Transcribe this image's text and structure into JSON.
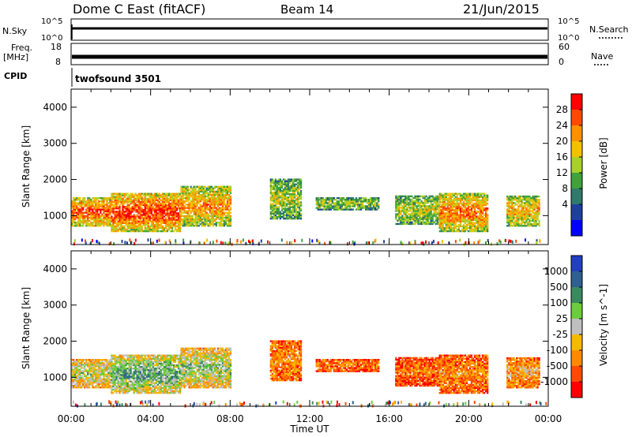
{
  "header": {
    "station": "Dome C East (fitACF)",
    "beam": "Beam 14",
    "date": "21/Jun/2015"
  },
  "status_panels": {
    "nsky_label": "N.Sky",
    "nsky_ticks": [
      "10^5",
      "10^0"
    ],
    "nsearch_label": "N.Search",
    "nsearch_ticks": [
      "10^5",
      "10^0"
    ],
    "freq_label": "Freq.",
    "freq_unit": "[MHz]",
    "freq_ticks": [
      "18",
      "8"
    ],
    "nave_label": "Nave",
    "nave_ticks": [
      "60",
      "0"
    ],
    "cpid_label": "CPID",
    "cpid_value": "twofsound 3501"
  },
  "chart_data": [
    {
      "type": "heatmap",
      "name": "power",
      "ylabel": "Slant Range [km]",
      "xlabel": "Time UT",
      "ylim": [
        200,
        4500
      ],
      "xlim": [
        0,
        24
      ],
      "yticks": [
        "1000",
        "2000",
        "3000",
        "4000"
      ],
      "xticks": [
        "00:00",
        "04:00",
        "08:00",
        "12:00",
        "16:00",
        "20:00",
        "00:00"
      ],
      "colorbar": {
        "label": "Power [dB]",
        "ticks": [
          "28",
          "24",
          "20",
          "16",
          "12",
          "8",
          "4"
        ],
        "colors": [
          "#ff0000",
          "#ff4a00",
          "#ff9000",
          "#f2c200",
          "#a8d02c",
          "#3fa23a",
          "#2f7a6a",
          "#1f3f9c",
          "#0000ff"
        ]
      },
      "regions": [
        {
          "t0": 0.0,
          "t1": 2.0,
          "r0": 700,
          "r1": 1500,
          "level": 0.85
        },
        {
          "t0": 2.0,
          "t1": 5.5,
          "r0": 550,
          "r1": 1600,
          "level": 0.9
        },
        {
          "t0": 5.5,
          "t1": 8.0,
          "r0": 700,
          "r1": 1800,
          "level": 0.75
        },
        {
          "t0": 10.0,
          "t1": 11.6,
          "r0": 900,
          "r1": 2000,
          "level": 0.55
        },
        {
          "t0": 12.3,
          "t1": 15.5,
          "r0": 1150,
          "r1": 1500,
          "level": 0.5
        },
        {
          "t0": 16.3,
          "t1": 18.5,
          "r0": 750,
          "r1": 1550,
          "level": 0.55
        },
        {
          "t0": 18.5,
          "t1": 20.9,
          "r0": 550,
          "r1": 1600,
          "level": 0.8
        },
        {
          "t0": 21.9,
          "t1": 23.5,
          "r0": 700,
          "r1": 1550,
          "level": 0.7
        }
      ]
    },
    {
      "type": "heatmap",
      "name": "velocity",
      "ylabel": "Slant Range [km]",
      "xlabel": "Time UT",
      "ylim": [
        200,
        4500
      ],
      "xlim": [
        0,
        24
      ],
      "yticks": [
        "1000",
        "2000",
        "3000",
        "4000"
      ],
      "xticks": [
        "00:00",
        "04:00",
        "08:00",
        "12:00",
        "16:00",
        "20:00",
        "00:00"
      ],
      "colorbar": {
        "label": "Velocity [m s^-1]",
        "ticks": [
          "1000",
          "500",
          "100",
          "25",
          "-25",
          "-100",
          "-500",
          "-1000"
        ],
        "colors": [
          "#2040c0",
          "#2f6090",
          "#3a8a60",
          "#6ccc3a",
          "#bfbfbf",
          "#f7b800",
          "#ff8a00",
          "#ff4a00",
          "#ff0000"
        ]
      },
      "regions": [
        {
          "t0": 0.0,
          "t1": 2.0,
          "r0": 700,
          "r1": 1500,
          "level": 0.55
        },
        {
          "t0": 2.0,
          "t1": 5.5,
          "r0": 550,
          "r1": 1600,
          "level": 0.7
        },
        {
          "t0": 5.5,
          "t1": 8.0,
          "r0": 700,
          "r1": 1800,
          "level": 0.6
        },
        {
          "t0": 10.0,
          "t1": 11.6,
          "r0": 900,
          "r1": 2000,
          "level": 0.3
        },
        {
          "t0": 12.3,
          "t1": 15.5,
          "r0": 1150,
          "r1": 1500,
          "level": 0.25
        },
        {
          "t0": 16.3,
          "t1": 18.5,
          "r0": 750,
          "r1": 1550,
          "level": 0.25
        },
        {
          "t0": 18.5,
          "t1": 20.9,
          "r0": 550,
          "r1": 1600,
          "level": 0.3
        },
        {
          "t0": 21.9,
          "t1": 23.5,
          "r0": 700,
          "r1": 1550,
          "level": 0.35
        }
      ]
    }
  ]
}
